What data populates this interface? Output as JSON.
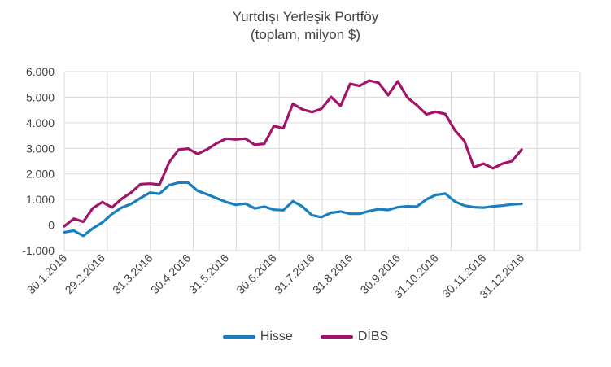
{
  "chart_data": {
    "type": "line",
    "title": "Yurtdışı Yerleşik Portföy",
    "subtitle": "(toplam, milyon $)",
    "xlabel": "",
    "ylabel": "",
    "ylim": [
      -1000,
      6000
    ],
    "y_ticks": [
      "-1.000",
      "0",
      "1.000",
      "2.000",
      "3.000",
      "4.000",
      "5.000",
      "6.000"
    ],
    "y_tick_values": [
      -1000,
      0,
      1000,
      2000,
      3000,
      4000,
      5000,
      6000
    ],
    "x_tick_labels": [
      "30.1.2016",
      "29.2.2016",
      "31.3.2016",
      "30.4.2016",
      "31.5.2016",
      "30.6.2016",
      "31.7.2016",
      "31.8.2016",
      "30.9.2016",
      "31.10.2016",
      "30.11.2016",
      "31.12.2016"
    ],
    "grid": true,
    "legend_position": "bottom",
    "series": [
      {
        "name": "Hisse",
        "color": "#1a7fc0",
        "values": [
          -280,
          -220,
          -420,
          -130,
          100,
          430,
          680,
          820,
          1060,
          1270,
          1220,
          1560,
          1660,
          1660,
          1340,
          1200,
          1050,
          900,
          790,
          840,
          650,
          720,
          600,
          580,
          930,
          720,
          380,
          310,
          480,
          530,
          440,
          440,
          550,
          620,
          590,
          700,
          730,
          720,
          1000,
          1180,
          1230,
          920,
          760,
          700,
          680,
          730,
          760,
          810,
          830
        ]
      },
      {
        "name": "DİBS",
        "color": "#a21467",
        "values": [
          -50,
          250,
          130,
          660,
          900,
          690,
          1020,
          1270,
          1600,
          1620,
          1580,
          2450,
          2950,
          2990,
          2780,
          2960,
          3200,
          3380,
          3350,
          3380,
          3140,
          3180,
          3870,
          3790,
          4740,
          4520,
          4420,
          4550,
          5010,
          4660,
          5520,
          5440,
          5650,
          5560,
          5080,
          5620,
          4990,
          4690,
          4330,
          4430,
          4340,
          3710,
          3290,
          2260,
          2400,
          2220,
          2400,
          2500,
          2950
        ]
      }
    ]
  }
}
